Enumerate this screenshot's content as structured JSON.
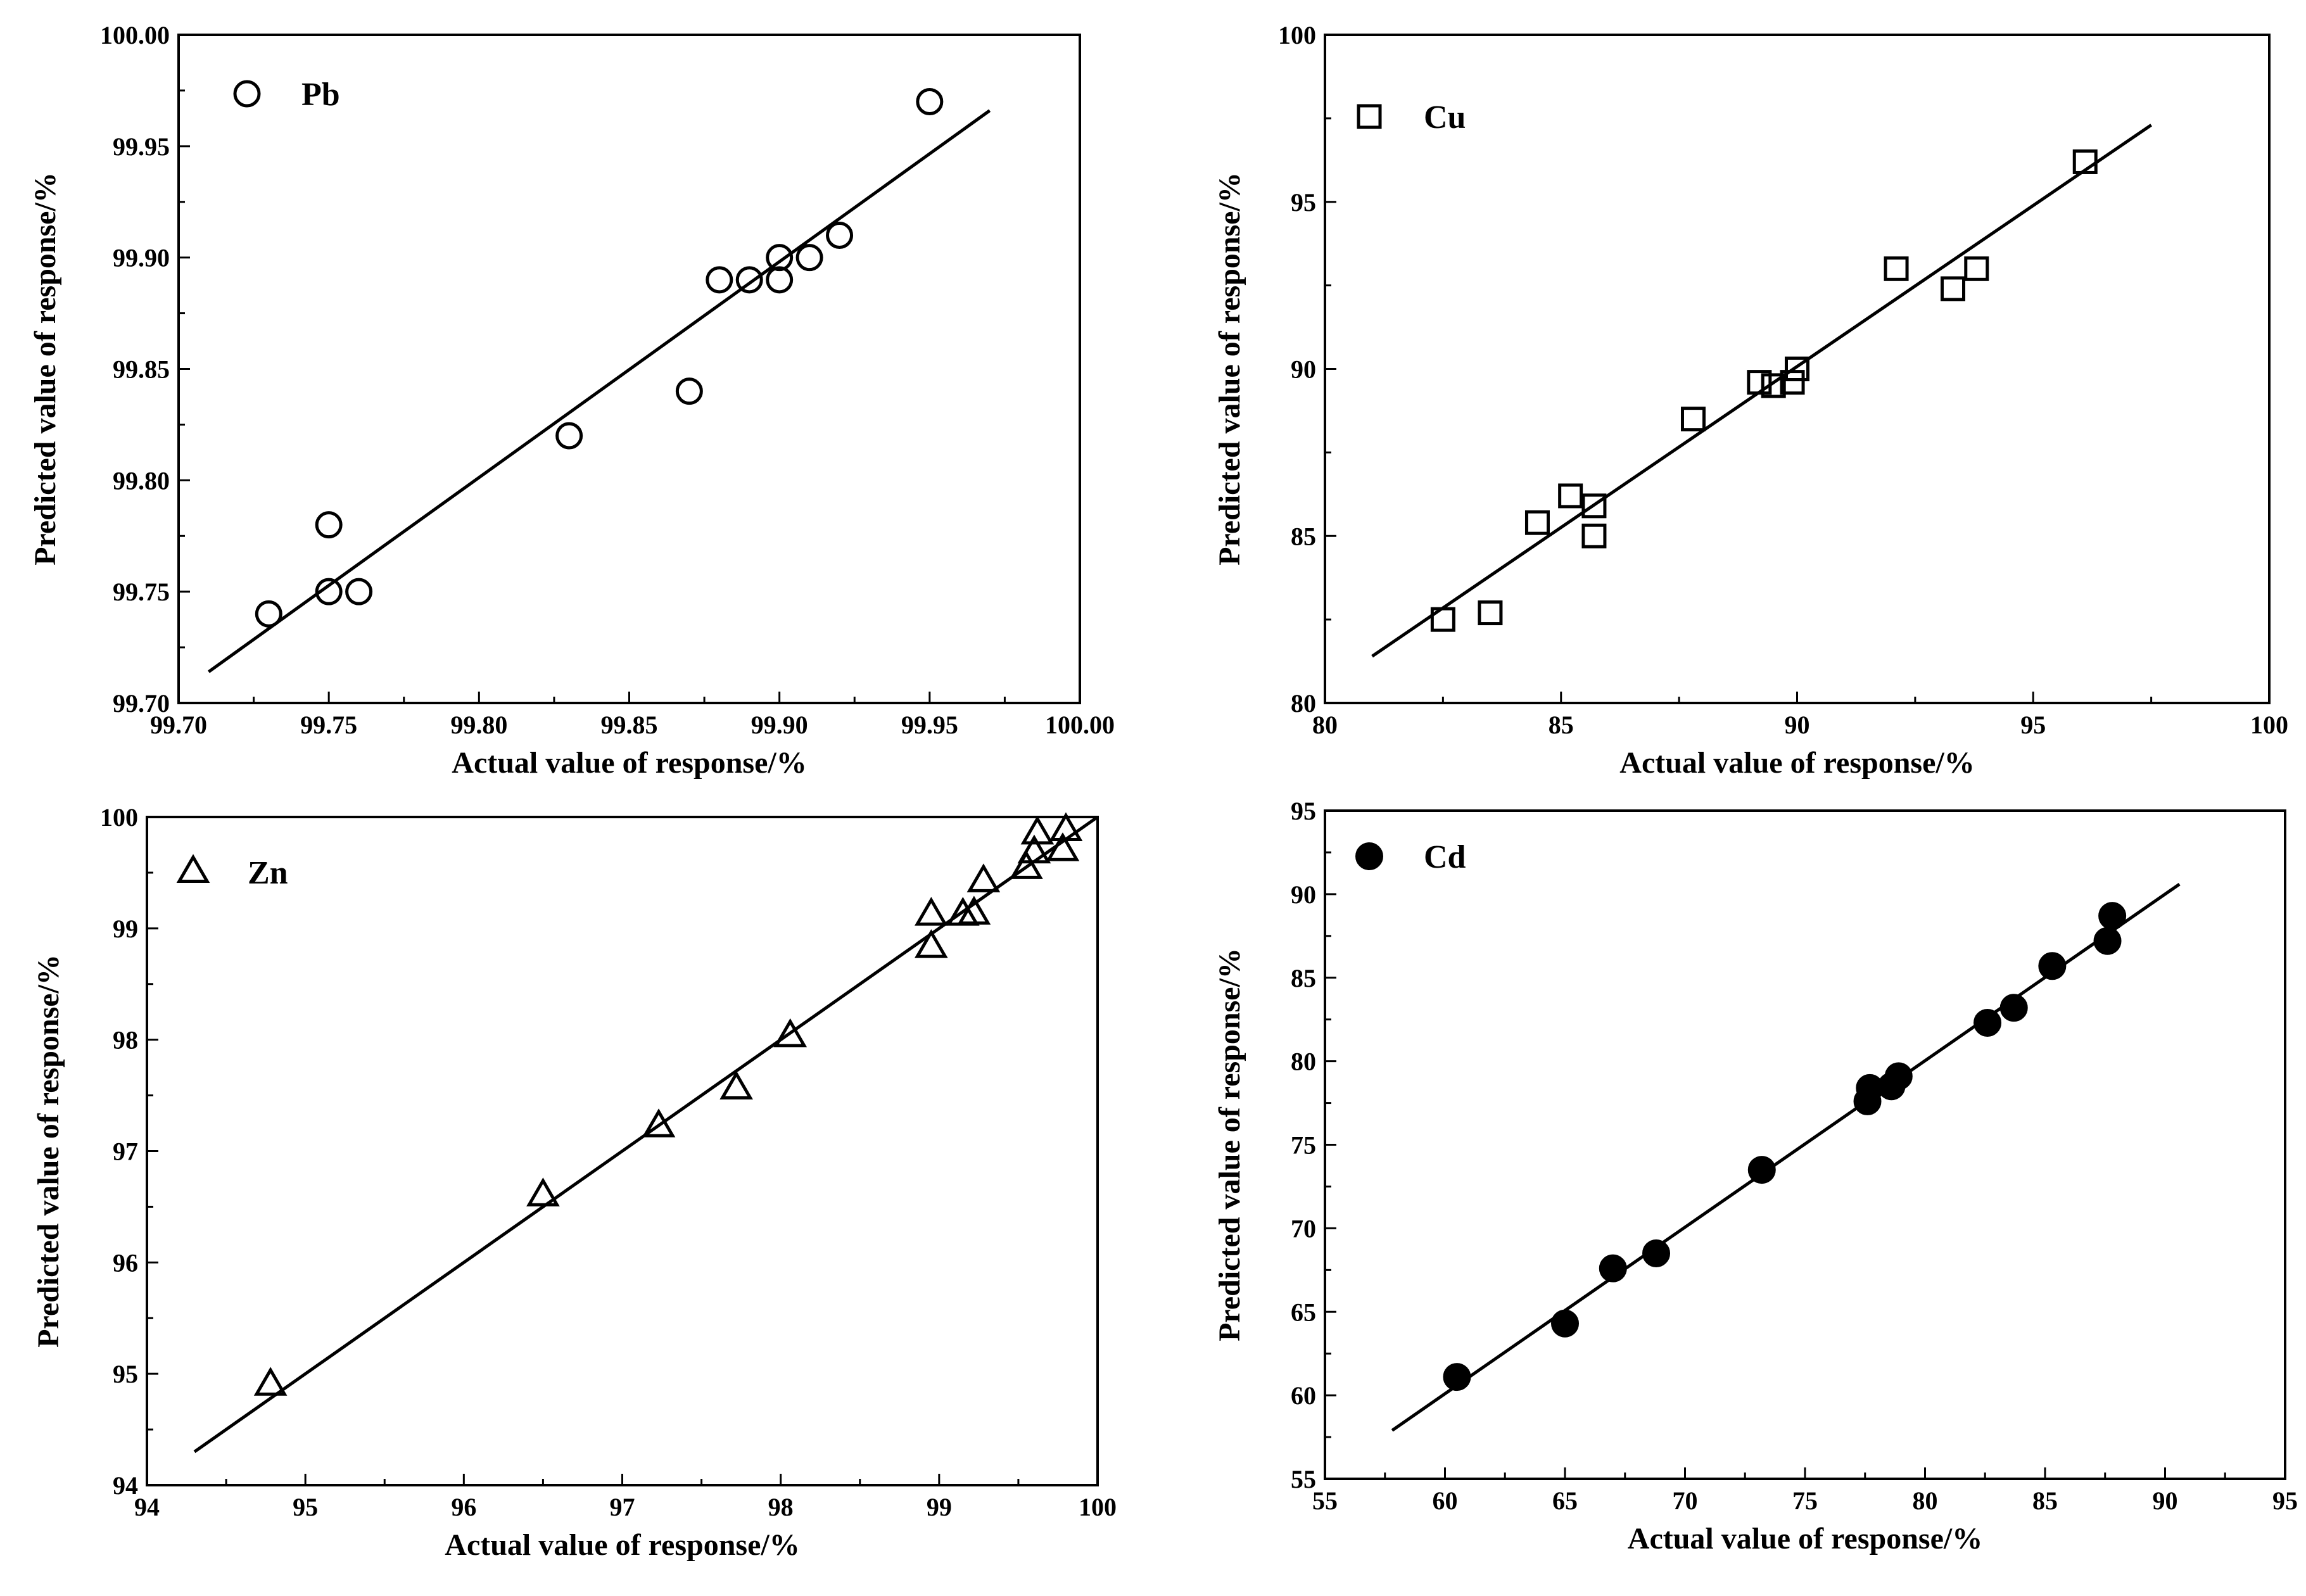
{
  "chart_data": [
    {
      "type": "scatter",
      "legend": "Pb",
      "marker": "open-circle",
      "xlabel": "Actual value of response/%",
      "ylabel": "Predicted value of response/%",
      "xlim": [
        99.7,
        100.0
      ],
      "ylim": [
        99.7,
        100.0
      ],
      "x_ticks": [
        "99.70",
        "99.75",
        "99.80",
        "99.85",
        "99.90",
        "99.95",
        "100.00"
      ],
      "x_tick_values": [
        99.7,
        99.75,
        99.8,
        99.85,
        99.9,
        99.95,
        100.0
      ],
      "y_ticks": [
        "99.70",
        "99.75",
        "99.80",
        "99.85",
        "99.90",
        "99.95",
        "100.00"
      ],
      "y_tick_values": [
        99.7,
        99.75,
        99.8,
        99.85,
        99.9,
        99.95,
        100.0
      ],
      "points": [
        {
          "x": 99.73,
          "y": 99.74
        },
        {
          "x": 99.75,
          "y": 99.78
        },
        {
          "x": 99.75,
          "y": 99.75
        },
        {
          "x": 99.76,
          "y": 99.75
        },
        {
          "x": 99.83,
          "y": 99.82
        },
        {
          "x": 99.87,
          "y": 99.84
        },
        {
          "x": 99.88,
          "y": 99.89
        },
        {
          "x": 99.89,
          "y": 99.89
        },
        {
          "x": 99.9,
          "y": 99.9
        },
        {
          "x": 99.9,
          "y": 99.89
        },
        {
          "x": 99.91,
          "y": 99.9
        },
        {
          "x": 99.92,
          "y": 99.91
        },
        {
          "x": 99.95,
          "y": 99.97
        }
      ],
      "fit_line": {
        "x": [
          99.71,
          99.97
        ],
        "y": [
          99.714,
          99.966
        ]
      }
    },
    {
      "type": "scatter",
      "legend": "Cu",
      "marker": "open-square",
      "xlabel": "Actual value of response/%",
      "ylabel": "Predicted value of response/%",
      "xlim": [
        80,
        100
      ],
      "ylim": [
        80,
        100
      ],
      "x_ticks": [
        "80",
        "85",
        "90",
        "95",
        "100"
      ],
      "x_tick_values": [
        80,
        85,
        90,
        95,
        100
      ],
      "y_ticks": [
        "80",
        "85",
        "90",
        "95",
        "100"
      ],
      "y_tick_values": [
        80,
        85,
        90,
        95,
        100
      ],
      "points": [
        {
          "x": 82.5,
          "y": 82.5
        },
        {
          "x": 83.5,
          "y": 82.7
        },
        {
          "x": 84.5,
          "y": 85.4
        },
        {
          "x": 85.2,
          "y": 86.2
        },
        {
          "x": 85.7,
          "y": 85.9
        },
        {
          "x": 85.7,
          "y": 85.0
        },
        {
          "x": 87.8,
          "y": 88.5
        },
        {
          "x": 89.2,
          "y": 89.6
        },
        {
          "x": 89.5,
          "y": 89.5
        },
        {
          "x": 89.9,
          "y": 89.6
        },
        {
          "x": 90.0,
          "y": 90.0
        },
        {
          "x": 92.1,
          "y": 93.0
        },
        {
          "x": 93.3,
          "y": 92.4
        },
        {
          "x": 93.8,
          "y": 93.0
        },
        {
          "x": 96.1,
          "y": 96.2
        }
      ],
      "fit_line": {
        "x": [
          81.0,
          97.5
        ],
        "y": [
          81.4,
          97.3
        ]
      }
    },
    {
      "type": "scatter",
      "legend": "Zn",
      "marker": "open-triangle",
      "xlabel": "Actual value of response/%",
      "ylabel": "Predicted value of response/%",
      "xlim": [
        94,
        100
      ],
      "ylim": [
        94,
        100
      ],
      "x_ticks": [
        "94",
        "95",
        "96",
        "97",
        "98",
        "99",
        "100"
      ],
      "x_tick_values": [
        94,
        95,
        96,
        97,
        98,
        99,
        100
      ],
      "y_ticks": [
        "94",
        "95",
        "96",
        "97",
        "98",
        "99",
        "100"
      ],
      "y_tick_values": [
        94,
        95,
        96,
        97,
        98,
        99,
        100
      ],
      "points": [
        {
          "x": 94.78,
          "y": 94.9
        },
        {
          "x": 96.5,
          "y": 96.6
        },
        {
          "x": 97.23,
          "y": 97.22
        },
        {
          "x": 97.72,
          "y": 97.56
        },
        {
          "x": 98.06,
          "y": 98.03
        },
        {
          "x": 98.95,
          "y": 98.83
        },
        {
          "x": 98.95,
          "y": 99.12
        },
        {
          "x": 99.15,
          "y": 99.12
        },
        {
          "x": 99.22,
          "y": 99.13
        },
        {
          "x": 99.28,
          "y": 99.42
        },
        {
          "x": 99.55,
          "y": 99.54
        },
        {
          "x": 99.6,
          "y": 99.68
        },
        {
          "x": 99.62,
          "y": 99.85
        },
        {
          "x": 99.78,
          "y": 99.7
        },
        {
          "x": 99.8,
          "y": 99.88
        }
      ],
      "fit_line": {
        "x": [
          94.3,
          100.0
        ],
        "y": [
          94.3,
          100.0
        ]
      }
    },
    {
      "type": "scatter",
      "legend": "Cd",
      "marker": "filled-circle",
      "xlabel": "Actual value of response/%",
      "ylabel": "Predicted value of response/%",
      "xlim": [
        55,
        95
      ],
      "ylim": [
        55,
        95
      ],
      "x_ticks": [
        "55",
        "60",
        "65",
        "70",
        "75",
        "80",
        "85",
        "90",
        "95"
      ],
      "x_tick_values": [
        55,
        60,
        65,
        70,
        75,
        80,
        85,
        90,
        95
      ],
      "y_ticks": [
        "55",
        "60",
        "65",
        "70",
        "75",
        "80",
        "85",
        "90",
        "95"
      ],
      "y_tick_values": [
        55,
        60,
        65,
        70,
        75,
        80,
        85,
        90,
        95
      ],
      "points": [
        {
          "x": 60.5,
          "y": 61.1
        },
        {
          "x": 65.0,
          "y": 64.3
        },
        {
          "x": 67.0,
          "y": 67.6
        },
        {
          "x": 68.8,
          "y": 68.5
        },
        {
          "x": 73.2,
          "y": 73.5
        },
        {
          "x": 77.6,
          "y": 77.6
        },
        {
          "x": 77.7,
          "y": 78.4
        },
        {
          "x": 78.6,
          "y": 78.5
        },
        {
          "x": 78.9,
          "y": 79.1
        },
        {
          "x": 82.6,
          "y": 82.3
        },
        {
          "x": 83.7,
          "y": 83.2
        },
        {
          "x": 85.3,
          "y": 85.7
        },
        {
          "x": 87.6,
          "y": 87.2
        },
        {
          "x": 87.8,
          "y": 88.7
        }
      ],
      "fit_line": {
        "x": [
          57.8,
          90.6
        ],
        "y": [
          57.9,
          90.6
        ]
      }
    }
  ]
}
